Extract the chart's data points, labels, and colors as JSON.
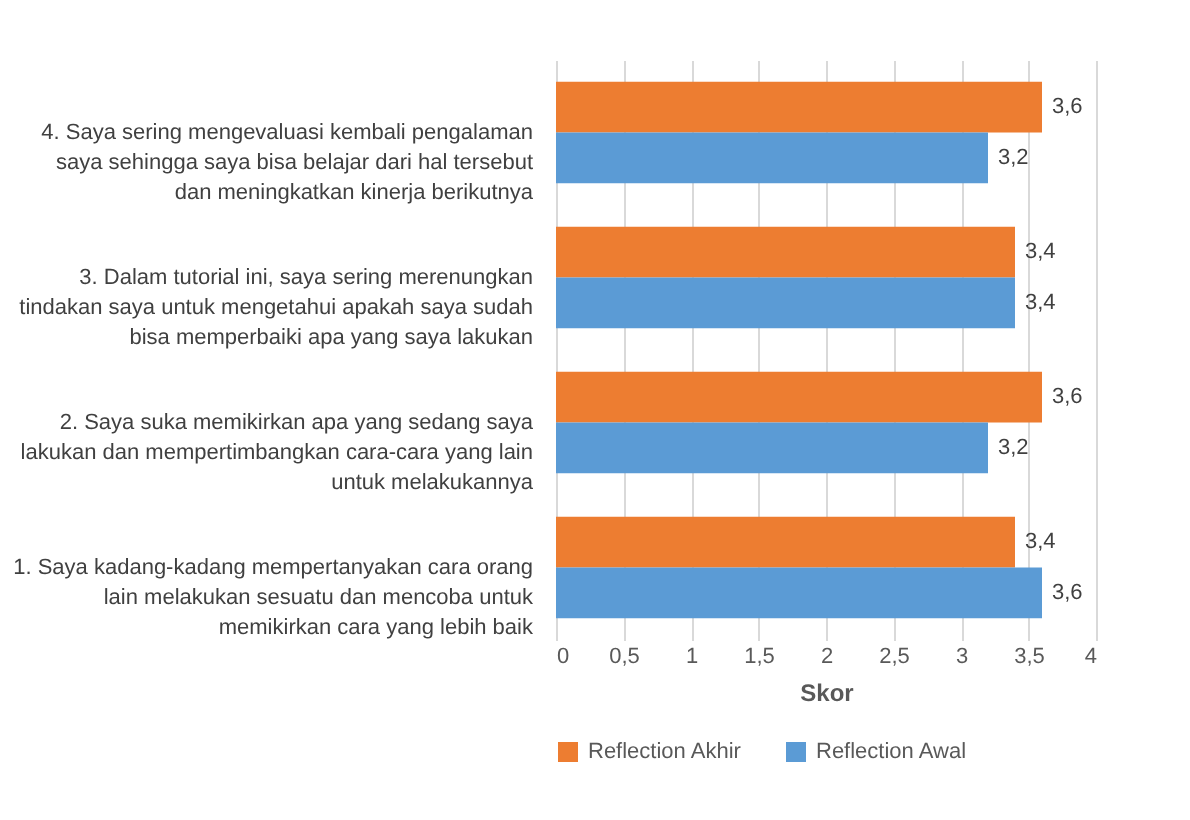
{
  "chart_data": {
    "type": "bar",
    "orientation": "horizontal",
    "categories": [
      "4. Saya sering mengevaluasi kembali pengalaman saya sehingga saya bisa belajar dari hal tersebut dan meningkatkan kinerja berikutnya",
      "3. Dalam tutorial ini, saya sering merenungkan tindakan saya untuk mengetahui apakah saya sudah bisa memperbaiki apa yang saya lakukan",
      "2. Saya suka memikirkan apa yang sedang saya lakukan dan mempertimbangkan cara-cara yang lain untuk melakukannya",
      "1. Saya kadang-kadang mempertanyakan cara orang lain melakukan sesuatu dan mencoba untuk memikirkan cara yang lebih baik"
    ],
    "series": [
      {
        "name": "Reflection Akhir",
        "color": "#ed7d31",
        "values": [
          3.6,
          3.4,
          3.6,
          3.4
        ],
        "value_labels": [
          "3,6",
          "3,4",
          "3,6",
          "3,4"
        ]
      },
      {
        "name": "Reflection Awal",
        "color": "#5b9bd5",
        "values": [
          3.2,
          3.4,
          3.2,
          3.6
        ],
        "value_labels": [
          "3,2",
          "3,4",
          "3,2",
          "3,6"
        ]
      }
    ],
    "xlabel": "Skor",
    "xlim": [
      0,
      4
    ],
    "xticks": [
      0,
      {
        "value": 0.5,
        "label": "0,5"
      },
      1,
      {
        "value": 1.5,
        "label": "1,5"
      },
      2,
      {
        "value": 2.5,
        "label": "2,5"
      },
      3,
      {
        "value": 3.5,
        "label": "3,5"
      },
      4
    ],
    "grid": "x",
    "legend": "bottom"
  }
}
